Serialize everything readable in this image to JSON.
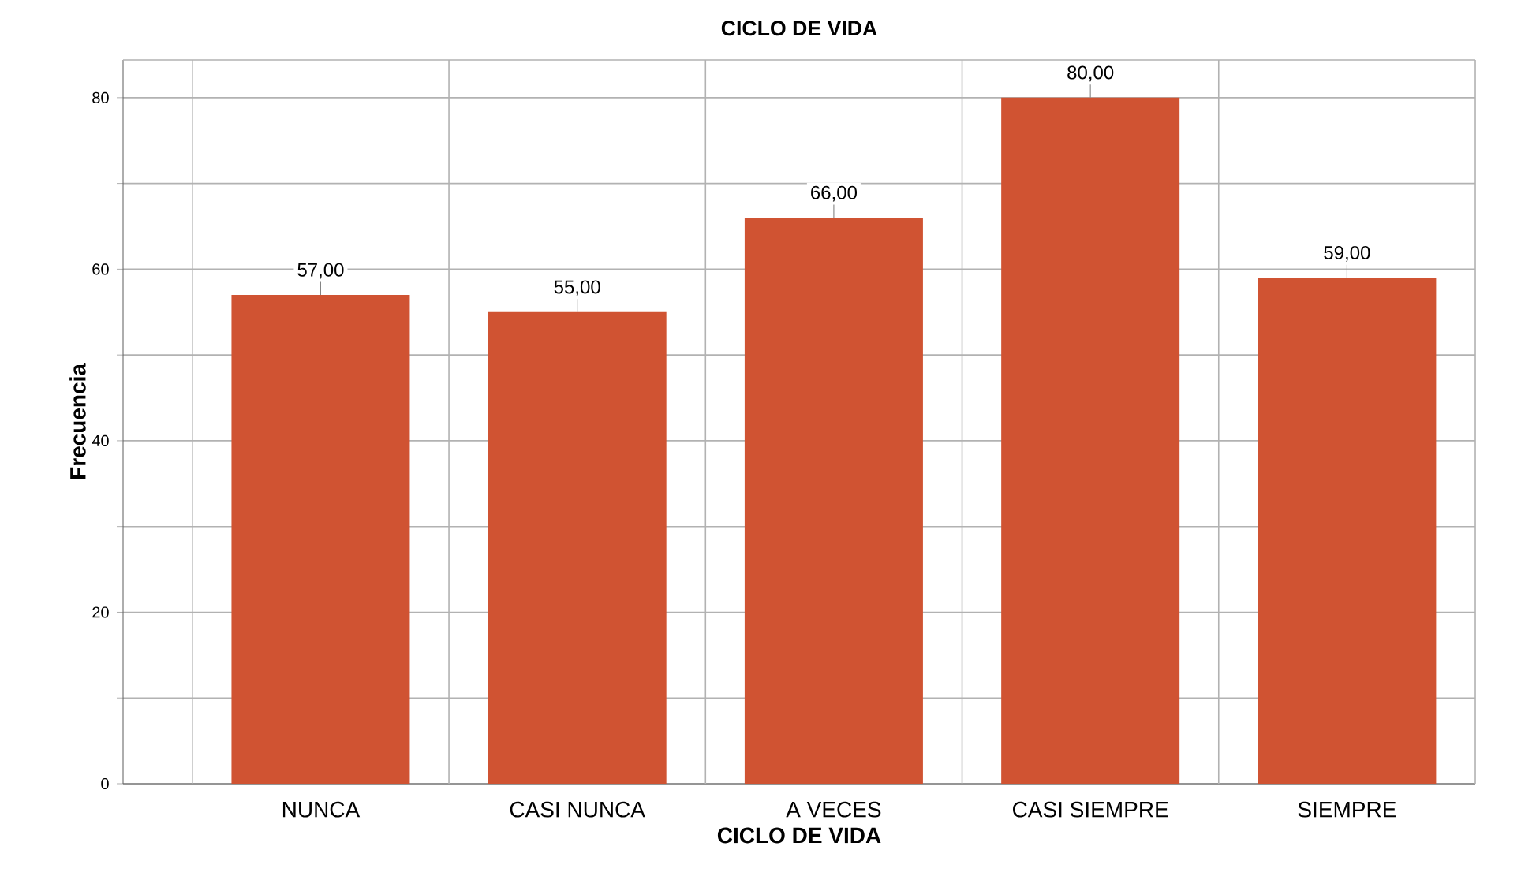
{
  "chart_data": {
    "type": "bar",
    "title": "CICLO DE VIDA",
    "xlabel": "CICLO DE VIDA",
    "ylabel": "Frecuencia",
    "categories": [
      "NUNCA",
      "CASI NUNCA",
      "A VECES",
      "CASI SIEMPRE",
      "SIEMPRE"
    ],
    "values": [
      57,
      55,
      66,
      80,
      59
    ],
    "value_labels": [
      "57,00",
      "55,00",
      "66,00",
      "80,00",
      "59,00"
    ],
    "color": "#d05332",
    "ylim": [
      0,
      84.4
    ],
    "yticks": [
      0,
      {
        "value": 10,
        "label": null
      },
      20,
      {
        "value": 30,
        "label": null
      },
      40,
      {
        "value": 50,
        "label": null
      },
      60,
      {
        "value": 70,
        "label": null
      },
      80
    ],
    "grid": true
  }
}
